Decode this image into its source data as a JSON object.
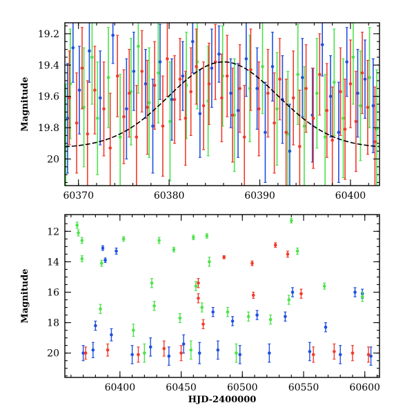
{
  "colors": {
    "blue": "#1f4fe0",
    "green": "#4be34b",
    "red": "#f23a2a",
    "model": "#000000",
    "axes": "#000000"
  },
  "chart_data": [
    {
      "type": "scatter",
      "title": "",
      "xlabel": "",
      "ylabel": "Magnitude",
      "xlim": [
        60368.5,
        60403.2
      ],
      "ylim": [
        20.17,
        19.13
      ],
      "y_inverted": true,
      "grid": false,
      "x_ticks": [
        60370,
        60380,
        60390,
        60400
      ],
      "x_tick_labels": [
        "60370",
        "60380",
        "60390",
        "60400"
      ],
      "y_ticks": [
        19.2,
        19.4,
        19.6,
        19.8,
        20
      ],
      "y_tick_labels": [
        "19.2",
        "19.4",
        "19.6",
        "19.8",
        "20"
      ],
      "model_curve": {
        "style": "dashed",
        "peak_x": 60386.0,
        "peak_y": 19.38,
        "base_y": 19.93,
        "width": 6.0
      },
      "series": [
        {
          "color": "blue",
          "points": [
            [
              60368.8,
              19.74,
              0.35
            ],
            [
              60369.4,
              19.29,
              0.22
            ],
            [
              60370.1,
              19.56,
              0.28
            ],
            [
              60371.2,
              19.31,
              0.2
            ],
            [
              60372.4,
              19.61,
              0.3
            ],
            [
              60373.8,
              19.21,
              0.18
            ],
            [
              60375.3,
              19.68,
              0.32
            ],
            [
              60376.1,
              19.44,
              0.25
            ],
            [
              60377.4,
              19.52,
              0.22
            ],
            [
              60378.2,
              19.79,
              0.3
            ],
            [
              60379.0,
              19.38,
              0.24
            ],
            [
              60380.3,
              19.62,
              0.26
            ],
            [
              60381.5,
              19.47,
              0.22
            ],
            [
              60382.6,
              19.25,
              0.2
            ],
            [
              60383.4,
              19.71,
              0.28
            ],
            [
              60384.7,
              19.42,
              0.25
            ],
            [
              60385.5,
              19.33,
              0.18
            ],
            [
              60386.8,
              19.58,
              0.22
            ],
            [
              60387.6,
              19.69,
              0.3
            ],
            [
              60388.5,
              19.36,
              0.24
            ],
            [
              60389.7,
              19.55,
              0.26
            ],
            [
              60390.6,
              19.83,
              0.32
            ],
            [
              60391.4,
              19.41,
              0.22
            ],
            [
              60392.5,
              19.62,
              0.28
            ],
            [
              60393.3,
              19.95,
              0.3
            ],
            [
              60394.7,
              19.48,
              0.25
            ],
            [
              60395.8,
              19.72,
              0.3
            ],
            [
              60396.9,
              19.27,
              0.2
            ],
            [
              60397.8,
              19.6,
              0.26
            ],
            [
              60398.7,
              19.83,
              0.32
            ],
            [
              60399.6,
              19.38,
              0.22
            ],
            [
              60400.8,
              19.58,
              0.28
            ],
            [
              60401.6,
              19.49,
              0.25
            ],
            [
              60402.5,
              19.66,
              0.3
            ]
          ]
        },
        {
          "color": "green",
          "points": [
            [
              60368.6,
              19.92,
              0.4
            ],
            [
              60369.1,
              19.52,
              0.35
            ],
            [
              60370.6,
              19.67,
              0.38
            ],
            [
              60371.5,
              19.35,
              0.3
            ],
            [
              60372.1,
              19.74,
              0.36
            ],
            [
              60373.3,
              19.48,
              0.32
            ],
            [
              60374.6,
              19.86,
              0.4
            ],
            [
              60375.8,
              19.57,
              0.34
            ],
            [
              60376.6,
              19.28,
              0.3
            ],
            [
              60377.8,
              19.64,
              0.35
            ],
            [
              60378.8,
              19.45,
              0.32
            ],
            [
              60380.1,
              19.76,
              0.38
            ],
            [
              60381.9,
              19.53,
              0.34
            ],
            [
              60383.1,
              19.38,
              0.3
            ],
            [
              60384.3,
              19.63,
              0.35
            ],
            [
              60385.9,
              19.47,
              0.32
            ],
            [
              60387.2,
              19.72,
              0.36
            ],
            [
              60388.9,
              19.55,
              0.34
            ],
            [
              60390.3,
              19.41,
              0.3
            ],
            [
              60391.9,
              19.68,
              0.36
            ],
            [
              60393.1,
              19.84,
              0.4
            ],
            [
              60394.2,
              19.46,
              0.32
            ],
            [
              60394.9,
              19.79,
              0.38
            ],
            [
              60396.3,
              19.58,
              0.35
            ],
            [
              60397.2,
              19.86,
              0.4
            ],
            [
              60398.2,
              19.51,
              0.34
            ],
            [
              60399.2,
              19.74,
              0.38
            ],
            [
              60400.3,
              19.35,
              0.3
            ],
            [
              60401.1,
              19.66,
              0.35
            ],
            [
              60402.1,
              19.48,
              0.32
            ],
            [
              60402.9,
              19.81,
              0.38
            ]
          ]
        },
        {
          "color": "red",
          "points": [
            [
              60369.0,
              19.61,
              0.3
            ],
            [
              60369.8,
              19.77,
              0.32
            ],
            [
              60370.4,
              19.42,
              0.26
            ],
            [
              60371.0,
              19.84,
              0.34
            ],
            [
              60371.8,
              19.56,
              0.28
            ],
            [
              60372.8,
              19.68,
              0.3
            ],
            [
              60373.5,
              19.93,
              0.35
            ],
            [
              60374.3,
              19.47,
              0.26
            ],
            [
              60375.0,
              19.73,
              0.3
            ],
            [
              60375.6,
              19.58,
              0.28
            ],
            [
              60376.4,
              19.86,
              0.33
            ],
            [
              60377.0,
              19.44,
              0.26
            ],
            [
              60377.6,
              19.67,
              0.3
            ],
            [
              60378.4,
              19.53,
              0.28
            ],
            [
              60379.3,
              19.79,
              0.32
            ],
            [
              60379.8,
              19.36,
              0.24
            ],
            [
              60380.6,
              19.62,
              0.28
            ],
            [
              60381.2,
              19.49,
              0.26
            ],
            [
              60381.8,
              19.74,
              0.3
            ],
            [
              60382.4,
              19.57,
              0.28
            ],
            [
              60383.0,
              19.41,
              0.24
            ],
            [
              60383.8,
              19.66,
              0.28
            ],
            [
              60384.4,
              19.52,
              0.26
            ],
            [
              60385.1,
              19.38,
              0.24
            ],
            [
              60385.8,
              19.61,
              0.28
            ],
            [
              60386.4,
              19.47,
              0.26
            ],
            [
              60387.0,
              19.72,
              0.3
            ],
            [
              60387.8,
              19.55,
              0.28
            ],
            [
              60388.3,
              19.86,
              0.33
            ],
            [
              60389.0,
              19.43,
              0.26
            ],
            [
              60389.9,
              19.68,
              0.3
            ],
            [
              60390.9,
              19.58,
              0.28
            ],
            [
              60391.6,
              19.77,
              0.32
            ],
            [
              60392.2,
              19.49,
              0.26
            ],
            [
              60392.9,
              19.83,
              0.34
            ],
            [
              60393.7,
              19.61,
              0.3
            ],
            [
              60394.4,
              19.92,
              0.36
            ],
            [
              60395.1,
              19.55,
              0.28
            ],
            [
              60395.9,
              19.74,
              0.32
            ],
            [
              60396.6,
              19.46,
              0.26
            ],
            [
              60397.4,
              19.69,
              0.3
            ],
            [
              60398.0,
              19.88,
              0.34
            ],
            [
              60398.9,
              19.57,
              0.28
            ],
            [
              60399.4,
              19.81,
              0.32
            ],
            [
              60400.0,
              19.52,
              0.28
            ],
            [
              60400.6,
              19.76,
              0.32
            ],
            [
              60401.3,
              19.45,
              0.26
            ],
            [
              60401.9,
              19.67,
              0.3
            ],
            [
              60402.7,
              19.89,
              0.35
            ]
          ]
        }
      ]
    },
    {
      "type": "scatter",
      "title": "",
      "xlabel": "HJD-2400000",
      "ylabel": "Magnitude",
      "xlim": [
        60355,
        60612
      ],
      "ylim": [
        21.6,
        10.9
      ],
      "y_inverted": true,
      "grid": false,
      "x_ticks": [
        60400,
        60450,
        60500,
        60550,
        60600
      ],
      "x_tick_labels": [
        "60400",
        "60450",
        "60500",
        "60550",
        "60600"
      ],
      "y_ticks": [
        12,
        14,
        16,
        18,
        20
      ],
      "y_tick_labels": [
        "12",
        "14",
        "16",
        "18",
        "20"
      ],
      "series": [
        {
          "color": "blue",
          "points": [
            [
              60370,
              20.0,
              0.5
            ],
            [
              60378,
              19.8,
              0.5
            ],
            [
              60386,
              13.1,
              0.15
            ],
            [
              60388,
              13.9,
              0.15
            ],
            [
              60397,
              13.3,
              0.2
            ],
            [
              60380,
              18.2,
              0.3
            ],
            [
              60393,
              18.8,
              0.4
            ],
            [
              60410,
              20.1,
              0.6
            ],
            [
              60425,
              19.6,
              0.6
            ],
            [
              60440,
              20.2,
              0.6
            ],
            [
              60452,
              19.4,
              0.6
            ],
            [
              60465,
              20.0,
              0.7
            ],
            [
              60476,
              17.3,
              0.3
            ],
            [
              60480,
              19.8,
              0.6
            ],
            [
              60492,
              17.9,
              0.3
            ],
            [
              60498,
              20.1,
              0.6
            ],
            [
              60512,
              17.5,
              0.3
            ],
            [
              60522,
              20.0,
              0.6
            ],
            [
              60535,
              17.6,
              0.3
            ],
            [
              60541,
              16.0,
              0.3
            ],
            [
              60555,
              19.9,
              0.6
            ],
            [
              60568,
              18.3,
              0.3
            ],
            [
              60580,
              20.1,
              0.6
            ],
            [
              60592,
              16.0,
              0.3
            ],
            [
              60598,
              16.1,
              0.3
            ],
            [
              60605,
              20.2,
              0.6
            ]
          ]
        },
        {
          "color": "green",
          "points": [
            [
              60365,
              11.6,
              0.2
            ],
            [
              60366,
              12.1,
              0.2
            ],
            [
              60369,
              12.6,
              0.2
            ],
            [
              60369,
              13.8,
              0.2
            ],
            [
              60384,
              17.1,
              0.3
            ],
            [
              60385,
              14.1,
              0.2
            ],
            [
              60403,
              12.5,
              0.15
            ],
            [
              60411,
              18.5,
              0.4
            ],
            [
              60426,
              15.4,
              0.3
            ],
            [
              60428,
              16.9,
              0.3
            ],
            [
              60432,
              12.6,
              0.2
            ],
            [
              60444,
              13.2,
              0.15
            ],
            [
              60449,
              17.7,
              0.3
            ],
            [
              60460,
              12.4,
              0.15
            ],
            [
              60462,
              15.6,
              0.3
            ],
            [
              60467,
              17.0,
              0.3
            ],
            [
              60471,
              12.3,
              0.15
            ],
            [
              60473,
              14.0,
              0.3
            ],
            [
              60488,
              17.3,
              0.3
            ],
            [
              60505,
              17.6,
              0.3
            ],
            [
              60523,
              17.8,
              0.3
            ],
            [
              60538,
              16.5,
              0.3
            ],
            [
              60540,
              11.3,
              0.15
            ],
            [
              60545,
              13.3,
              0.2
            ],
            [
              60567,
              15.6,
              0.2
            ],
            [
              60598,
              16.3,
              0.3
            ],
            [
              60420,
              20.0,
              0.6
            ],
            [
              60458,
              19.8,
              0.6
            ],
            [
              60495,
              20.0,
              0.6
            ]
          ]
        },
        {
          "color": "red",
          "points": [
            [
              60372,
              20.0,
              0.4
            ],
            [
              60390,
              19.8,
              0.4
            ],
            [
              60415,
              20.1,
              0.5
            ],
            [
              60436,
              19.7,
              0.5
            ],
            [
              60450,
              20.0,
              0.5
            ],
            [
              60464,
              15.4,
              0.3
            ],
            [
              60464,
              16.4,
              0.3
            ],
            [
              60468,
              18.1,
              0.3
            ],
            [
              60485,
              13.7,
              0.1
            ],
            [
              60508,
              14.1,
              0.15
            ],
            [
              60509,
              16.2,
              0.2
            ],
            [
              60527,
              12.9,
              0.15
            ],
            [
              60537,
              13.5,
              0.2
            ],
            [
              60548,
              16.1,
              0.3
            ],
            [
              60558,
              20.1,
              0.5
            ],
            [
              60575,
              19.9,
              0.5
            ],
            [
              60590,
              20.0,
              0.5
            ],
            [
              60603,
              20.1,
              0.5
            ]
          ]
        }
      ]
    }
  ]
}
